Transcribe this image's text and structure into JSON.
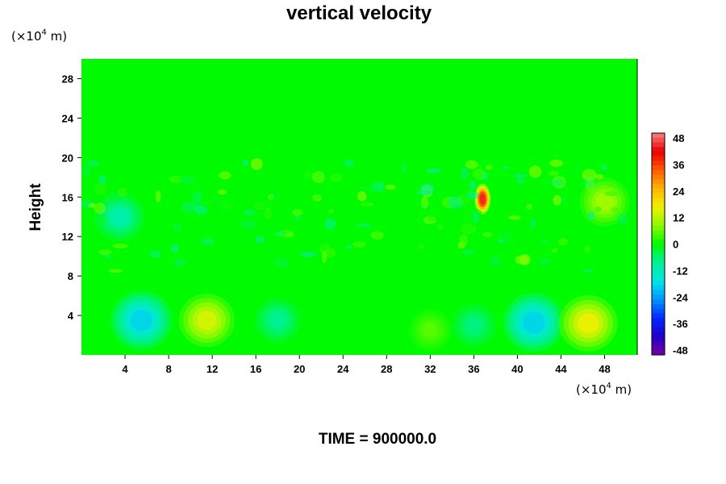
{
  "chart_data": {
    "type": "heatmap",
    "title": "vertical velocity",
    "ylabel": "Height",
    "x_unit_prefix": "(×10",
    "x_unit_exp": "4",
    "x_unit_suffix": " m)",
    "y_unit_prefix": "(×10",
    "y_unit_exp": "4",
    "y_unit_suffix": " m)",
    "xlim": [
      0,
      51
    ],
    "ylim": [
      0,
      30
    ],
    "xticks": [
      4,
      8,
      12,
      16,
      20,
      24,
      28,
      32,
      36,
      40,
      44,
      48
    ],
    "yticks": [
      4,
      8,
      12,
      16,
      20,
      24,
      28
    ],
    "colorbar": {
      "ticks": [
        48,
        36,
        24,
        12,
        0,
        -12,
        -24,
        -36,
        -48
      ],
      "range": [
        -48,
        48
      ]
    },
    "features": [
      {
        "x": 5.5,
        "y": 3.5,
        "value": -18
      },
      {
        "x": 11.5,
        "y": 3.5,
        "value": 14
      },
      {
        "x": 18,
        "y": 3.5,
        "value": -8
      },
      {
        "x": 32,
        "y": 2.5,
        "value": 5
      },
      {
        "x": 36,
        "y": 3,
        "value": -7
      },
      {
        "x": 41.5,
        "y": 3.3,
        "value": -18
      },
      {
        "x": 46.5,
        "y": 3.2,
        "value": 16
      },
      {
        "x": 36.8,
        "y": 15.8,
        "value": 42
      },
      {
        "x": 3.5,
        "y": 14,
        "value": -10
      },
      {
        "x": 48,
        "y": 15.5,
        "value": 10
      }
    ],
    "time_label": "TIME = 900000.0"
  }
}
